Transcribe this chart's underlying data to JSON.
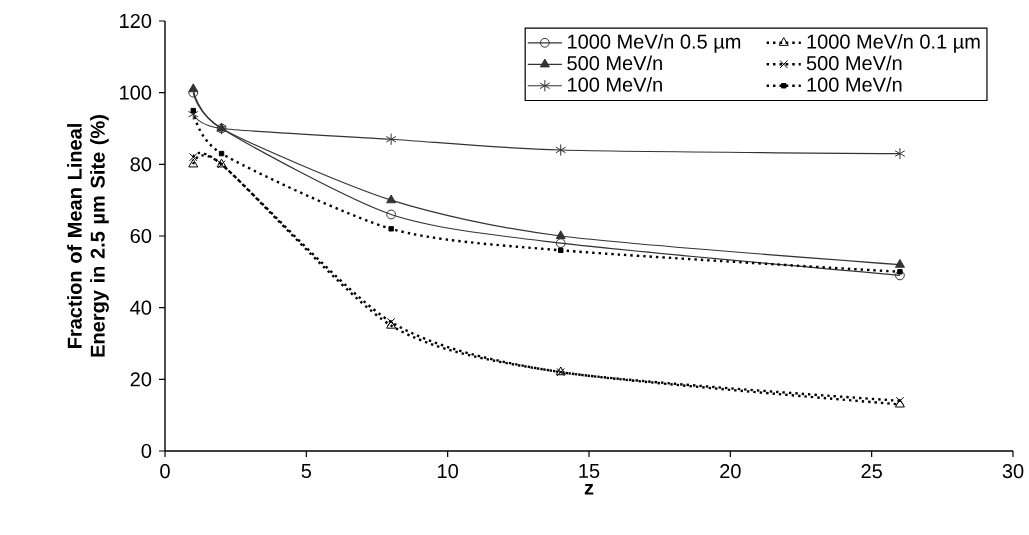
{
  "chart_data": {
    "type": "line",
    "xlabel": "z",
    "ylabel": "Fraction of Mean Lineal Energy in 2.5 µm Site (%)",
    "x": [
      1,
      2,
      8,
      14,
      26
    ],
    "series": [
      {
        "name": "1000 MeV/n 0.5 µm",
        "color": "#333333",
        "marker": "circle",
        "line_style": "solid",
        "values": [
          100,
          90,
          66,
          58,
          49
        ]
      },
      {
        "name": "500 MeV/n",
        "color": "#333333",
        "marker": "triangle",
        "line_style": "solid",
        "values": [
          101,
          90,
          70,
          60,
          52
        ]
      },
      {
        "name": "100 MeV/n",
        "color": "#333333",
        "marker": "cross",
        "line_style": "solid",
        "values": [
          94,
          90,
          87,
          84,
          83
        ]
      },
      {
        "name": "1000 MeV/n 0.1 µm",
        "color": "#000000",
        "marker": "triangle",
        "line_style": "dotted",
        "values": [
          80,
          80,
          35,
          22,
          13
        ]
      },
      {
        "name": "500 MeV/n",
        "color": "#000000",
        "marker": "cross",
        "line_style": "dotted",
        "values": [
          82,
          80,
          36,
          22,
          14
        ]
      },
      {
        "name": "100 MeV/n",
        "color": "#000000",
        "marker": "square",
        "line_style": "dotted",
        "values": [
          95,
          83,
          62,
          56,
          50
        ]
      }
    ],
    "xlim": [
      0,
      30
    ],
    "xticks": [
      0,
      5,
      10,
      15,
      20,
      25,
      30
    ],
    "ylim": [
      0,
      120
    ],
    "yticks": [
      0,
      20,
      40,
      60,
      80,
      100,
      120
    ],
    "grid": false,
    "legend": "top right"
  }
}
